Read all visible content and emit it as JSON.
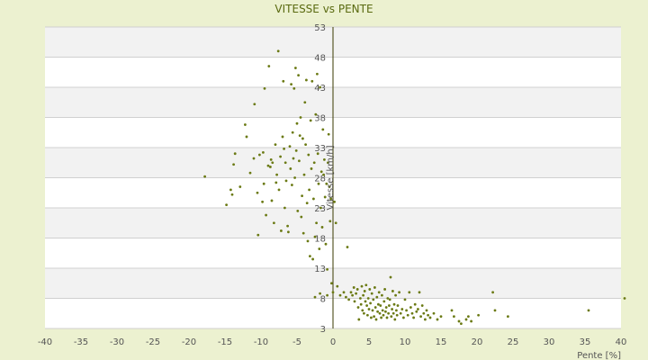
{
  "chart_data": {
    "type": "scatter",
    "title": "VITESSE vs PENTE",
    "xlabel": "Pente [%]",
    "ylabel": "Vitesse [km/h]",
    "xlim": [
      -40,
      40
    ],
    "ylim": [
      3,
      53
    ],
    "x_ticks": [
      "-40",
      "-35",
      "-30",
      "-25",
      "-20",
      "-15",
      "-10",
      "-5",
      "0",
      "5",
      "10",
      "15",
      "20",
      "25",
      "30",
      "35",
      "40"
    ],
    "y_ticks": [
      "3",
      "8",
      "13",
      "18",
      "23",
      "28",
      "33",
      "38",
      "43",
      "48",
      "53"
    ],
    "grid": true,
    "point_color": "#6b7a14",
    "band_color": "#f2f2f2",
    "points": [
      [
        -17.8,
        28.2
      ],
      [
        -14.8,
        23.5
      ],
      [
        -14.2,
        26.0
      ],
      [
        -14.0,
        25.2
      ],
      [
        -13.8,
        30.2
      ],
      [
        -13.6,
        32.0
      ],
      [
        -12.9,
        26.5
      ],
      [
        -12.2,
        36.8
      ],
      [
        -12.0,
        34.8
      ],
      [
        -11.5,
        28.8
      ],
      [
        -11.0,
        31.2
      ],
      [
        -10.9,
        40.2
      ],
      [
        -10.5,
        25.5
      ],
      [
        -10.4,
        18.5
      ],
      [
        -10.2,
        31.8
      ],
      [
        -9.8,
        24.0
      ],
      [
        -9.7,
        32.2
      ],
      [
        -9.6,
        27.0
      ],
      [
        -9.5,
        42.8
      ],
      [
        -9.3,
        21.8
      ],
      [
        -9.0,
        30.0
      ],
      [
        -8.9,
        46.5
      ],
      [
        -8.7,
        29.8
      ],
      [
        -8.6,
        31.0
      ],
      [
        -8.5,
        24.2
      ],
      [
        -8.4,
        30.5
      ],
      [
        -8.2,
        20.5
      ],
      [
        -8.0,
        33.5
      ],
      [
        -7.9,
        27.2
      ],
      [
        -7.8,
        28.5
      ],
      [
        -7.6,
        49.0
      ],
      [
        -7.5,
        26.0
      ],
      [
        -7.3,
        31.5
      ],
      [
        -7.2,
        19.2
      ],
      [
        -7.0,
        34.8
      ],
      [
        -6.9,
        44.0
      ],
      [
        -6.8,
        32.8
      ],
      [
        -6.7,
        23.0
      ],
      [
        -6.6,
        30.5
      ],
      [
        -6.5,
        27.5
      ],
      [
        -6.3,
        20.0
      ],
      [
        -6.2,
        19.0
      ],
      [
        -6.0,
        33.2
      ],
      [
        -5.9,
        29.5
      ],
      [
        -5.8,
        43.5
      ],
      [
        -5.7,
        26.8
      ],
      [
        -5.6,
        35.5
      ],
      [
        -5.5,
        31.2
      ],
      [
        -5.4,
        42.8
      ],
      [
        -5.3,
        28.0
      ],
      [
        -5.2,
        46.2
      ],
      [
        -5.1,
        32.5
      ],
      [
        -5.0,
        37.0
      ],
      [
        -4.9,
        22.5
      ],
      [
        -4.8,
        45.0
      ],
      [
        -4.7,
        30.8
      ],
      [
        -4.6,
        35.0
      ],
      [
        -4.5,
        38.0
      ],
      [
        -4.4,
        21.5
      ],
      [
        -4.3,
        25.0
      ],
      [
        -4.2,
        34.5
      ],
      [
        -4.1,
        18.8
      ],
      [
        -4.0,
        28.5
      ],
      [
        -3.9,
        40.5
      ],
      [
        -3.8,
        33.5
      ],
      [
        -3.7,
        44.2
      ],
      [
        -3.6,
        23.8
      ],
      [
        -3.5,
        17.5
      ],
      [
        -3.4,
        31.8
      ],
      [
        -3.3,
        26.0
      ],
      [
        -3.2,
        15.0
      ],
      [
        -3.1,
        37.5
      ],
      [
        -3.0,
        29.5
      ],
      [
        -2.9,
        44.0
      ],
      [
        -2.8,
        14.5
      ],
      [
        -2.7,
        24.5
      ],
      [
        -2.6,
        30.5
      ],
      [
        -2.5,
        18.2
      ],
      [
        -2.4,
        38.5
      ],
      [
        -2.3,
        20.5
      ],
      [
        -2.2,
        45.2
      ],
      [
        -2.1,
        32.0
      ],
      [
        -2.0,
        27.0
      ],
      [
        -1.9,
        16.2
      ],
      [
        -1.8,
        43.0
      ],
      [
        -1.7,
        23.0
      ],
      [
        -1.6,
        29.0
      ],
      [
        -1.5,
        19.8
      ],
      [
        -1.4,
        36.0
      ],
      [
        -1.3,
        28.5
      ],
      [
        -1.2,
        31.0
      ],
      [
        -1.1,
        24.8
      ],
      [
        -1.0,
        17.0
      ],
      [
        -0.9,
        27.0
      ],
      [
        -0.8,
        12.8
      ],
      [
        -0.7,
        30.5
      ],
      [
        -0.6,
        35.2
      ],
      [
        -0.5,
        26.5
      ],
      [
        -0.4,
        20.8
      ],
      [
        -0.3,
        24.5
      ],
      [
        -0.2,
        10.5
      ],
      [
        0.0,
        9.0
      ],
      [
        0.2,
        24.0
      ],
      [
        0.4,
        20.5
      ],
      [
        0.6,
        10.0
      ],
      [
        -2.5,
        8.2
      ],
      [
        -1.8,
        8.8
      ],
      [
        -0.8,
        8.5
      ],
      [
        1.0,
        8.5
      ],
      [
        1.5,
        9.0
      ],
      [
        1.8,
        8.2
      ],
      [
        2.0,
        16.5
      ],
      [
        2.2,
        7.8
      ],
      [
        2.5,
        9.0
      ],
      [
        2.7,
        8.5
      ],
      [
        2.9,
        9.8
      ],
      [
        3.0,
        7.5
      ],
      [
        3.2,
        8.8
      ],
      [
        3.4,
        9.5
      ],
      [
        3.5,
        6.5
      ],
      [
        3.6,
        4.5
      ],
      [
        3.8,
        8.0
      ],
      [
        3.9,
        7.0
      ],
      [
        4.0,
        10.0
      ],
      [
        4.1,
        6.0
      ],
      [
        4.2,
        8.5
      ],
      [
        4.3,
        5.5
      ],
      [
        4.4,
        9.2
      ],
      [
        4.5,
        7.5
      ],
      [
        4.6,
        10.2
      ],
      [
        4.7,
        6.8
      ],
      [
        4.8,
        5.2
      ],
      [
        4.9,
        8.0
      ],
      [
        5.0,
        6.2
      ],
      [
        5.1,
        9.5
      ],
      [
        5.2,
        7.2
      ],
      [
        5.3,
        4.8
      ],
      [
        5.4,
        8.8
      ],
      [
        5.5,
        6.0
      ],
      [
        5.6,
        7.8
      ],
      [
        5.7,
        5.0
      ],
      [
        5.8,
        9.8
      ],
      [
        5.9,
        6.5
      ],
      [
        6.0,
        4.5
      ],
      [
        6.1,
        8.2
      ],
      [
        6.2,
        5.8
      ],
      [
        6.3,
        7.0
      ],
      [
        6.4,
        9.0
      ],
      [
        6.5,
        5.5
      ],
      [
        6.6,
        6.8
      ],
      [
        6.7,
        4.8
      ],
      [
        6.8,
        8.5
      ],
      [
        6.9,
        6.0
      ],
      [
        7.0,
        5.2
      ],
      [
        7.1,
        7.5
      ],
      [
        7.2,
        9.5
      ],
      [
        7.3,
        5.8
      ],
      [
        7.4,
        6.5
      ],
      [
        7.5,
        4.8
      ],
      [
        7.6,
        8.0
      ],
      [
        7.7,
        5.5
      ],
      [
        7.8,
        6.8
      ],
      [
        7.9,
        7.8
      ],
      [
        8.0,
        11.5
      ],
      [
        8.1,
        5.0
      ],
      [
        8.2,
        6.2
      ],
      [
        8.3,
        9.2
      ],
      [
        8.4,
        5.5
      ],
      [
        8.5,
        7.0
      ],
      [
        8.6,
        4.5
      ],
      [
        8.7,
        8.5
      ],
      [
        8.8,
        6.0
      ],
      [
        8.9,
        5.2
      ],
      [
        9.0,
        6.8
      ],
      [
        9.2,
        9.0
      ],
      [
        9.4,
        5.5
      ],
      [
        9.6,
        6.2
      ],
      [
        9.8,
        4.8
      ],
      [
        10.0,
        7.8
      ],
      [
        10.2,
        6.0
      ],
      [
        10.4,
        5.2
      ],
      [
        10.6,
        9.0
      ],
      [
        10.8,
        6.5
      ],
      [
        11.0,
        5.5
      ],
      [
        11.2,
        4.8
      ],
      [
        11.4,
        7.0
      ],
      [
        11.6,
        5.8
      ],
      [
        11.8,
        6.2
      ],
      [
        12.0,
        9.0
      ],
      [
        12.2,
        5.0
      ],
      [
        12.4,
        6.8
      ],
      [
        12.6,
        5.5
      ],
      [
        12.8,
        4.5
      ],
      [
        13.0,
        6.0
      ],
      [
        13.2,
        5.2
      ],
      [
        13.5,
        4.8
      ],
      [
        14.0,
        5.5
      ],
      [
        14.5,
        4.5
      ],
      [
        15.0,
        5.0
      ],
      [
        16.5,
        6.0
      ],
      [
        16.8,
        5.0
      ],
      [
        17.5,
        4.2
      ],
      [
        17.8,
        3.8
      ],
      [
        18.5,
        4.5
      ],
      [
        18.8,
        5.0
      ],
      [
        19.2,
        4.2
      ],
      [
        20.2,
        5.2
      ],
      [
        22.2,
        9.0
      ],
      [
        22.5,
        6.0
      ],
      [
        24.3,
        5.0
      ],
      [
        35.5,
        6.0
      ],
      [
        40.5,
        8.0
      ]
    ]
  }
}
